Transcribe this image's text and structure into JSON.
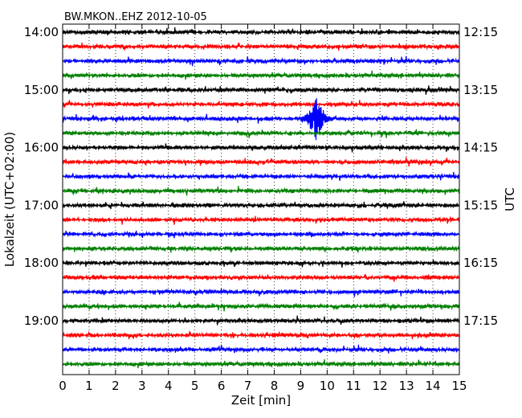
{
  "chart_data": {
    "type": "line",
    "title": "BW.MKON..EHZ 2012-10-05",
    "xlabel": "Zeit  [min]",
    "ylabel_left": "Lokalzeit (UTC+02:00)",
    "ylabel_right": "UTC",
    "xlim": [
      0,
      15
    ],
    "x_ticks": [
      "0",
      "1",
      "2",
      "3",
      "4",
      "5",
      "6",
      "7",
      "8",
      "9",
      "10",
      "11",
      "12",
      "13",
      "14",
      "15"
    ],
    "left_ticks": [
      "14:00",
      "15:00",
      "16:00",
      "17:00",
      "18:00",
      "19:00"
    ],
    "right_ticks": [
      "12:15",
      "13:15",
      "14:15",
      "15:15",
      "16:15",
      "17:15"
    ],
    "grid": "vertical dotted",
    "trace_interval_min": 15,
    "traces": 24,
    "colors": [
      "#000000",
      "#ff0000",
      "#0000ff",
      "#008000"
    ],
    "events": [
      {
        "trace_index": 6,
        "minute": 9.6,
        "description": "large amplitude event"
      }
    ]
  }
}
